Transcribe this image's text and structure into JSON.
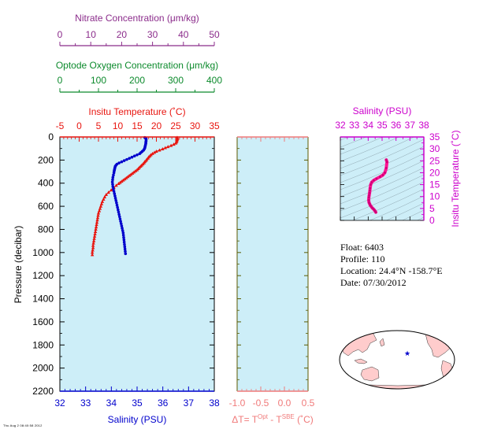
{
  "colors": {
    "panel_bg": "#cdeef8",
    "temperature": "#e8150f",
    "salinity": "#0000cc",
    "nitrate": "#8b2c8b",
    "oxygen": "#0c8a2c",
    "delta_t": "#f07a7a",
    "ts_salinity": "#cc00cc",
    "ts_curve": "#ff1493",
    "frame_olive": "#5a5a00",
    "ocean": "#ffffff",
    "land": "#ffcccc",
    "marker": "#0000cc"
  },
  "info": {
    "float": "Float:  6403",
    "profile": "Profile:  110",
    "location": "Location:  24.4°N  -158.7°E",
    "date": "Date:  07/30/2012"
  },
  "stamp": "Thu Aug 2 08:40:58 2012",
  "chart_data": [
    {
      "type": "line",
      "panel": "main-profile",
      "ylabel": "Pressure (decibar)",
      "y_ticks": [
        0,
        200,
        400,
        600,
        800,
        1000,
        1200,
        1400,
        1600,
        1800,
        2000,
        2200
      ],
      "ylim": [
        2200,
        0
      ],
      "axes": {
        "nitrate": {
          "label": "Nitrate Concentration (μm/kg)",
          "ticks": [
            0,
            10,
            20,
            30,
            40,
            50
          ],
          "range": [
            0,
            50
          ]
        },
        "oxygen": {
          "label": "Optode Oxygen Concentration (μm/kg)",
          "ticks": [
            0,
            100,
            200,
            300,
            400
          ],
          "range": [
            0,
            400
          ]
        },
        "temperature": {
          "label": "Insitu Temperature (˚C)",
          "ticks": [
            -5,
            0,
            5,
            10,
            15,
            20,
            25,
            30,
            35
          ],
          "range": [
            -5,
            35
          ]
        },
        "salinity": {
          "label": "Salinity (PSU)",
          "ticks": [
            32,
            33,
            34,
            35,
            36,
            37,
            38
          ],
          "range": [
            32,
            38
          ]
        }
      },
      "series": [
        {
          "variable": "temperature",
          "marker": "triangle",
          "points": [
            [
              25.4,
              5
            ],
            [
              25.5,
              15
            ],
            [
              25.4,
              25
            ],
            [
              25.3,
              35
            ],
            [
              25.2,
              45
            ],
            [
              25.0,
              55
            ],
            [
              24.5,
              65
            ],
            [
              23.8,
              75
            ],
            [
              23.0,
              85
            ],
            [
              22.3,
              95
            ],
            [
              21.6,
              105
            ],
            [
              20.8,
              115
            ],
            [
              20.0,
              125
            ],
            [
              19.5,
              135
            ],
            [
              19.0,
              145
            ],
            [
              18.6,
              155
            ],
            [
              18.3,
              165
            ],
            [
              18.0,
              175
            ],
            [
              17.8,
              185
            ],
            [
              17.5,
              195
            ],
            [
              17.3,
              205
            ],
            [
              17.0,
              215
            ],
            [
              16.8,
              225
            ],
            [
              16.5,
              235
            ],
            [
              16.2,
              245
            ],
            [
              15.9,
              255
            ],
            [
              15.6,
              265
            ],
            [
              15.3,
              275
            ],
            [
              15.0,
              285
            ],
            [
              14.6,
              295
            ],
            [
              14.2,
              305
            ],
            [
              13.8,
              315
            ],
            [
              13.4,
              325
            ],
            [
              13.0,
              335
            ],
            [
              12.6,
              345
            ],
            [
              12.2,
              355
            ],
            [
              11.8,
              365
            ],
            [
              11.4,
              375
            ],
            [
              11.0,
              385
            ],
            [
              10.6,
              395
            ],
            [
              10.2,
              405
            ],
            [
              9.6,
              420
            ],
            [
              9.0,
              440
            ],
            [
              8.3,
              460
            ],
            [
              7.6,
              480
            ],
            [
              7.0,
              500
            ],
            [
              6.6,
              520
            ],
            [
              6.3,
              540
            ],
            [
              6.0,
              560
            ],
            [
              5.8,
              580
            ],
            [
              5.6,
              600
            ],
            [
              5.4,
              620
            ],
            [
              5.2,
              640
            ],
            [
              5.0,
              660
            ],
            [
              4.9,
              680
            ],
            [
              4.8,
              700
            ],
            [
              4.7,
              720
            ],
            [
              4.6,
              740
            ],
            [
              4.5,
              760
            ],
            [
              4.4,
              780
            ],
            [
              4.3,
              800
            ],
            [
              4.2,
              820
            ],
            [
              4.1,
              840
            ],
            [
              4.0,
              860
            ],
            [
              3.9,
              880
            ],
            [
              3.8,
              900
            ],
            [
              3.7,
              920
            ],
            [
              3.6,
              940
            ],
            [
              3.6,
              960
            ],
            [
              3.5,
              980
            ],
            [
              3.4,
              1000
            ],
            [
              3.4,
              1020
            ]
          ]
        },
        {
          "variable": "salinity",
          "marker": "circle",
          "points": [
            [
              35.3,
              5
            ],
            [
              35.35,
              15
            ],
            [
              35.35,
              25
            ],
            [
              35.35,
              35
            ],
            [
              35.34,
              45
            ],
            [
              35.34,
              55
            ],
            [
              35.33,
              65
            ],
            [
              35.32,
              75
            ],
            [
              35.31,
              85
            ],
            [
              35.3,
              95
            ],
            [
              35.28,
              105
            ],
            [
              35.25,
              115
            ],
            [
              35.2,
              125
            ],
            [
              35.15,
              135
            ],
            [
              35.1,
              145
            ],
            [
              35.0,
              155
            ],
            [
              34.9,
              165
            ],
            [
              34.8,
              175
            ],
            [
              34.7,
              185
            ],
            [
              34.6,
              195
            ],
            [
              34.5,
              205
            ],
            [
              34.4,
              215
            ],
            [
              34.3,
              225
            ],
            [
              34.22,
              235
            ],
            [
              34.18,
              245
            ],
            [
              34.15,
              255
            ],
            [
              34.14,
              265
            ],
            [
              34.13,
              275
            ],
            [
              34.12,
              285
            ],
            [
              34.11,
              295
            ],
            [
              34.1,
              310
            ],
            [
              34.08,
              330
            ],
            [
              34.06,
              350
            ],
            [
              34.05,
              370
            ],
            [
              34.04,
              390
            ],
            [
              34.05,
              410
            ],
            [
              34.06,
              430
            ],
            [
              34.08,
              450
            ],
            [
              34.1,
              470
            ],
            [
              34.12,
              490
            ],
            [
              34.14,
              510
            ],
            [
              34.16,
              530
            ],
            [
              34.18,
              550
            ],
            [
              34.2,
              570
            ],
            [
              34.22,
              590
            ],
            [
              34.24,
              610
            ],
            [
              34.26,
              630
            ],
            [
              34.28,
              650
            ],
            [
              34.3,
              670
            ],
            [
              34.32,
              690
            ],
            [
              34.34,
              710
            ],
            [
              34.36,
              730
            ],
            [
              34.38,
              750
            ],
            [
              34.4,
              770
            ],
            [
              34.42,
              790
            ],
            [
              34.44,
              810
            ],
            [
              34.46,
              830
            ],
            [
              34.47,
              850
            ],
            [
              34.48,
              870
            ],
            [
              34.49,
              890
            ],
            [
              34.5,
              910
            ],
            [
              34.51,
              930
            ],
            [
              34.52,
              950
            ],
            [
              34.53,
              970
            ],
            [
              34.54,
              990
            ],
            [
              34.55,
              1010
            ]
          ]
        }
      ]
    },
    {
      "type": "line",
      "panel": "delta-t",
      "xlabel": "ΔT= T",
      "xlabel_sup1": "Opt",
      "xlabel_mid": " - T",
      "xlabel_sup2": "SBE",
      "xlabel_end": " (˚C)",
      "x_ticks": [
        "-1.0",
        "-0.5",
        "0.0",
        "0.5"
      ],
      "xlim": [
        -1.0,
        0.5
      ],
      "ylim": [
        2200,
        0
      ],
      "series": []
    },
    {
      "type": "line",
      "panel": "ts-diagram",
      "xlabel": "Salinity (PSU)",
      "ylabel": "Insitu Temperature (˚C)",
      "x_ticks": [
        32,
        33,
        34,
        35,
        36,
        37,
        38
      ],
      "y_ticks": [
        0,
        5,
        10,
        15,
        20,
        25,
        30,
        35
      ],
      "xlim": [
        32,
        38
      ],
      "ylim": [
        0,
        35
      ],
      "series": [
        {
          "points": [
            [
              35.3,
              25.4
            ],
            [
              35.35,
              24.5
            ],
            [
              35.3,
              22.0
            ],
            [
              35.2,
              20.0
            ],
            [
              35.05,
              19.0
            ],
            [
              34.85,
              18.3
            ],
            [
              34.6,
              17.5
            ],
            [
              34.4,
              16.8
            ],
            [
              34.25,
              16.0
            ],
            [
              34.18,
              15.0
            ],
            [
              34.14,
              13.5
            ],
            [
              34.12,
              12.5
            ],
            [
              34.1,
              11.5
            ],
            [
              34.07,
              10.5
            ],
            [
              34.05,
              9.6
            ],
            [
              34.04,
              8.5
            ],
            [
              34.06,
              7.5
            ],
            [
              34.1,
              7.0
            ],
            [
              34.15,
              6.3
            ],
            [
              34.22,
              5.8
            ],
            [
              34.3,
              5.2
            ],
            [
              34.38,
              4.8
            ],
            [
              34.45,
              4.3
            ],
            [
              34.5,
              3.9
            ],
            [
              34.55,
              3.4
            ]
          ]
        }
      ]
    }
  ]
}
